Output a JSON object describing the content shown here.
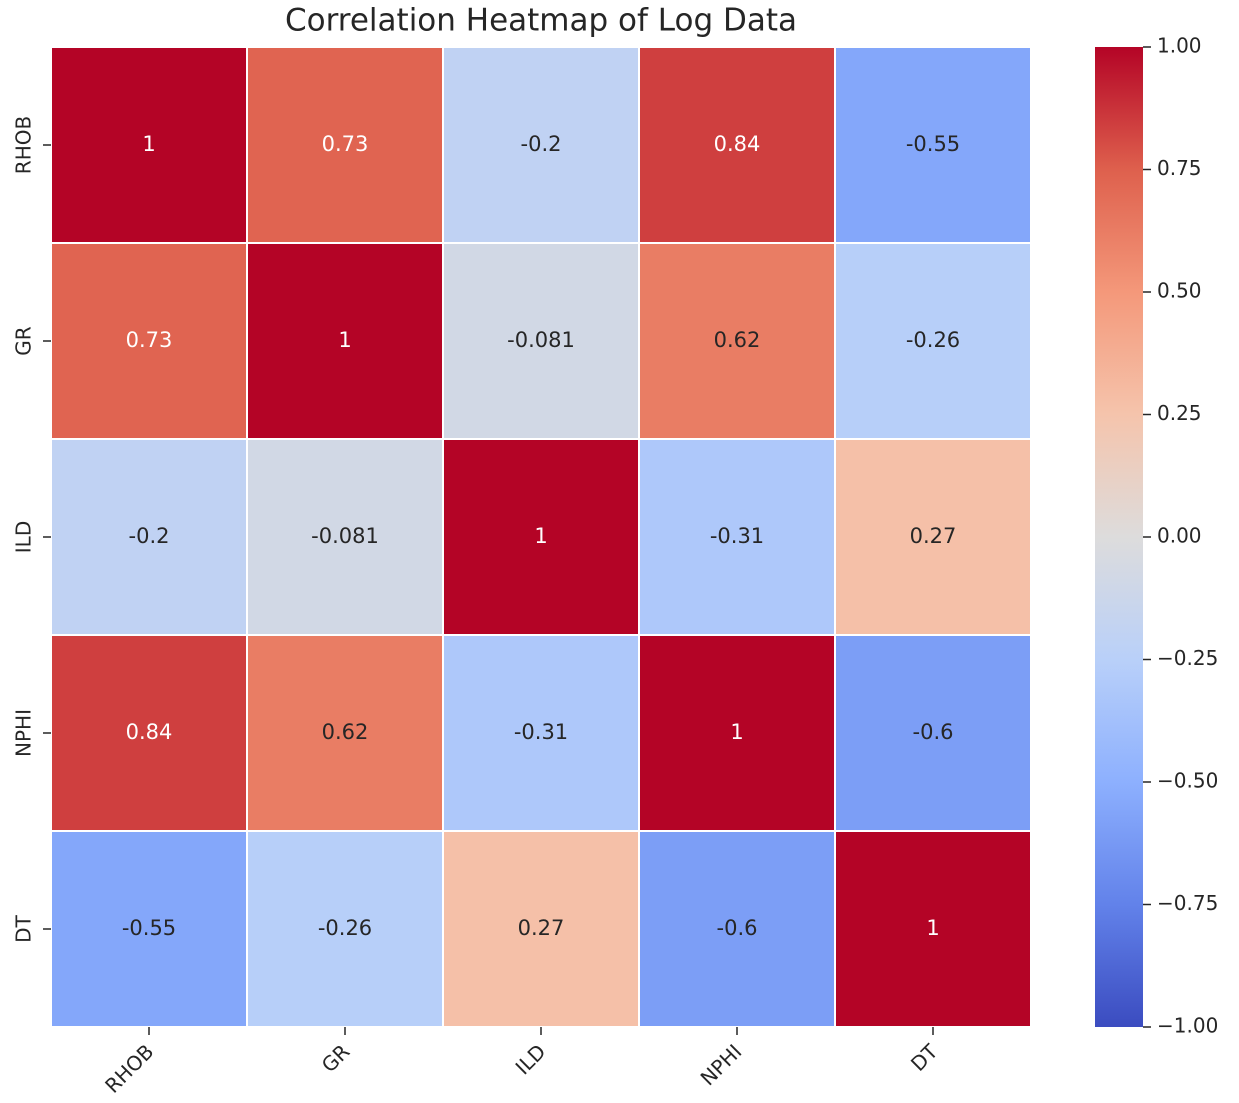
{
  "chart_data": {
    "type": "heatmap",
    "title": "Correlation Heatmap of Log Data",
    "x_categories": [
      "RHOB",
      "GR",
      "ILD",
      "NPHI",
      "DT"
    ],
    "y_categories": [
      "RHOB",
      "GR",
      "ILD",
      "NPHI",
      "DT"
    ],
    "values": [
      [
        1,
        0.73,
        -0.2,
        0.84,
        -0.55
      ],
      [
        0.73,
        1,
        -0.081,
        0.62,
        -0.26
      ],
      [
        -0.2,
        -0.081,
        1,
        -0.31,
        0.27
      ],
      [
        0.84,
        0.62,
        -0.31,
        1,
        -0.6
      ],
      [
        -0.55,
        -0.26,
        0.27,
        -0.6,
        1
      ]
    ],
    "colormap": "coolwarm",
    "clim": [
      -1,
      1
    ],
    "cticks": [
      {
        "value": 1,
        "label": "1.00"
      },
      {
        "value": 0.75,
        "label": "0.75"
      },
      {
        "value": 0.5,
        "label": "0.50"
      },
      {
        "value": 0.25,
        "label": "0.25"
      },
      {
        "value": 0,
        "label": "0.00"
      },
      {
        "value": -0.25,
        "label": "−0.25"
      },
      {
        "value": -0.5,
        "label": "−0.50"
      },
      {
        "value": -0.75,
        "label": "−0.75"
      },
      {
        "value": -1,
        "label": "−1.00"
      }
    ]
  }
}
